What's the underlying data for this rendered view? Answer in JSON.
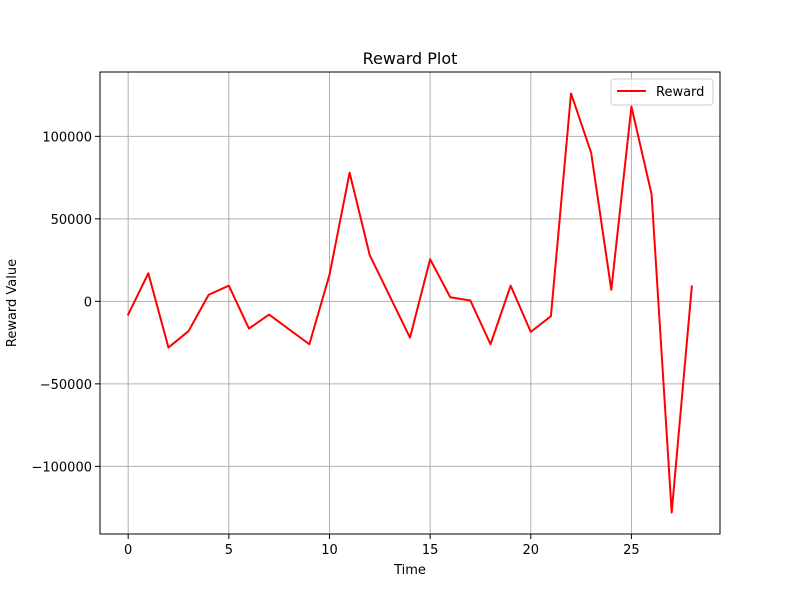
{
  "chart_data": {
    "type": "line",
    "title": "Reward Plot",
    "xlabel": "Time",
    "ylabel": "Reward Value",
    "x": [
      0,
      1,
      2,
      3,
      4,
      5,
      6,
      7,
      8,
      9,
      10,
      11,
      12,
      13,
      14,
      15,
      16,
      17,
      18,
      19,
      20,
      21,
      22,
      23,
      24,
      25,
      26,
      27,
      28
    ],
    "series": [
      {
        "name": "Reward",
        "color": "#ff0000",
        "values": [
          -8000,
          17000,
          -28000,
          -18000,
          4000,
          9500,
          -16500,
          -8000,
          -17000,
          -26000,
          16000,
          78000,
          28000,
          3000,
          -22000,
          25500,
          2500,
          500,
          -26000,
          9500,
          -18500,
          -9000,
          126000,
          90000,
          7000,
          118000,
          65000,
          -128000,
          9000
        ]
      }
    ],
    "xlim": [
      -1.4,
      29.4
    ],
    "ylim": [
      -141000,
      139000
    ],
    "xticks": [
      0,
      5,
      10,
      15,
      20,
      25
    ],
    "xtick_labels": [
      "0",
      "5",
      "10",
      "15",
      "20",
      "25"
    ],
    "yticks": [
      -100000,
      -50000,
      0,
      50000,
      100000
    ],
    "ytick_labels": [
      "−100000",
      "−50000",
      "0",
      "50000",
      "100000"
    ],
    "grid": true,
    "legend": "top-right"
  }
}
